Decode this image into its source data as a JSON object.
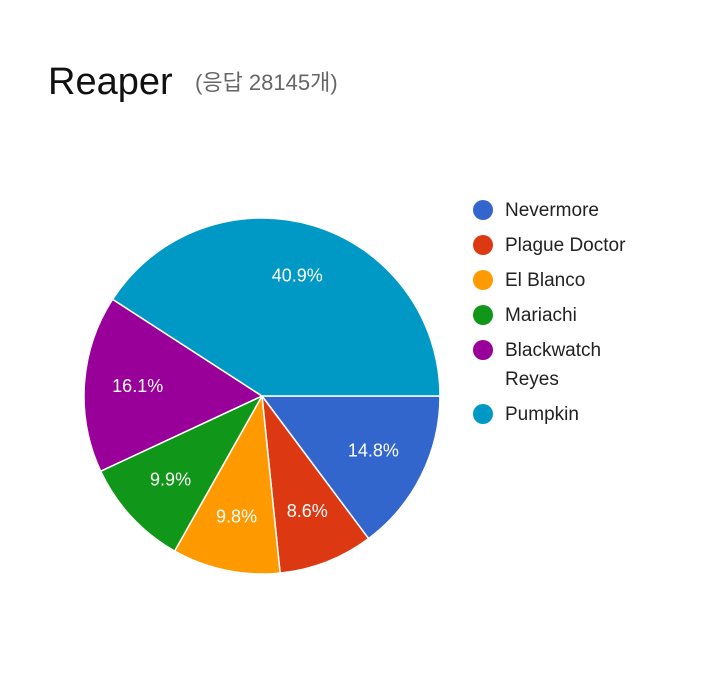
{
  "chart_data": {
    "type": "pie",
    "title": "Reaper",
    "subtitle": "(응답 28145개)",
    "categories": [
      "Nevermore",
      "Plague Doctor",
      "El Blanco",
      "Mariachi",
      "Blackwatch Reyes",
      "Pumpkin"
    ],
    "values": [
      14.8,
      8.6,
      9.8,
      9.9,
      16.1,
      40.9
    ],
    "value_labels": [
      "14.8%",
      "8.6%",
      "9.8%",
      "9.9%",
      "16.1%",
      "40.9%"
    ],
    "colors": [
      "#3366cc",
      "#dc3912",
      "#ff9900",
      "#109618",
      "#990099",
      "#0099c6"
    ]
  }
}
